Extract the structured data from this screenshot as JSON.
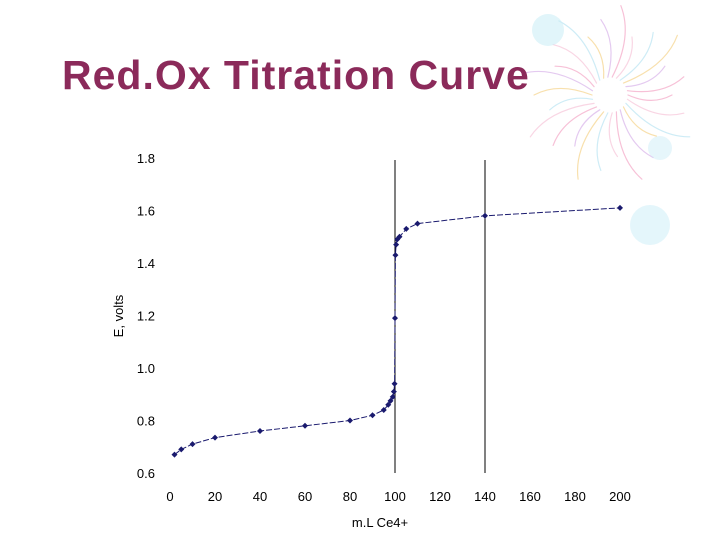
{
  "slide": {
    "title": "Red.Ox Titration Curve"
  },
  "colors": {
    "title": "#8b2a5a",
    "series": "#1a1a6e",
    "decor": "#f0a8c8"
  },
  "decor_icon": "pastel-flower-decoration",
  "chart_data": {
    "type": "scatter",
    "title": "",
    "xlabel": "m.L Ce4+",
    "ylabel": "E, volts",
    "xlim": [
      0,
      200
    ],
    "ylim": [
      0.6,
      1.8
    ],
    "x_ticks": [
      "0",
      "20",
      "40",
      "60",
      "80",
      "100",
      "120",
      "140",
      "160",
      "180",
      "200"
    ],
    "y_ticks": [
      "0.6",
      "0.8",
      "1.0",
      "1.2",
      "1.4",
      "1.6",
      "1.8"
    ],
    "vertical_lines": [
      100,
      140
    ],
    "grid": false,
    "legend": "none",
    "series": [
      {
        "x": [
          2,
          5,
          10,
          20,
          40,
          60,
          80,
          90,
          95,
          97,
          98,
          99,
          99.5,
          99.8,
          100,
          100.2,
          100.5,
          101,
          102,
          105,
          110,
          140,
          200
        ],
        "y": [
          0.67,
          0.69,
          0.71,
          0.735,
          0.76,
          0.78,
          0.8,
          0.82,
          0.84,
          0.86,
          0.875,
          0.89,
          0.91,
          0.94,
          1.19,
          1.43,
          1.47,
          1.49,
          1.5,
          1.53,
          1.55,
          1.58,
          1.61
        ]
      }
    ]
  }
}
